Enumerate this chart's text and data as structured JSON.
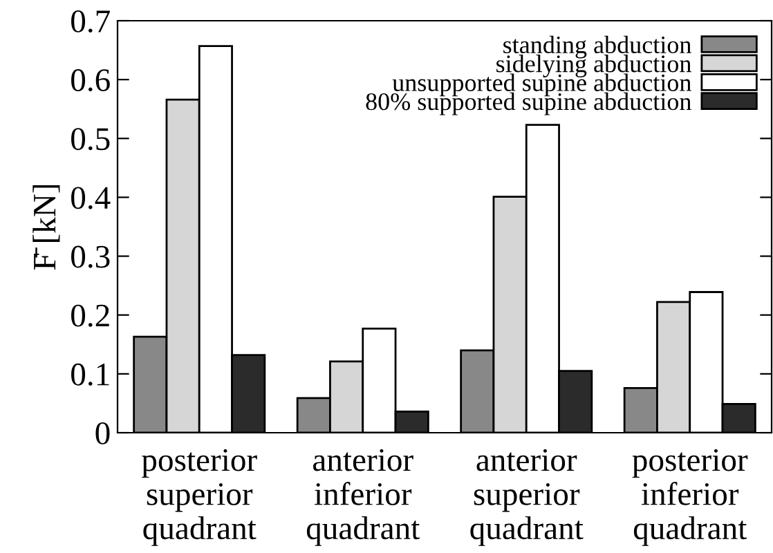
{
  "chart_data": {
    "type": "bar",
    "ylabel": "F̄ [kN]",
    "categories": [
      "posterior\nsuperior\nquadrant",
      "anterior\ninferior\nquadrant",
      "anterior\nsuperior\nquadrant",
      "posterior\ninferior\nquadrant"
    ],
    "series": [
      {
        "name": "standing abduction",
        "color": "#888888",
        "values": [
          0.163,
          0.059,
          0.14,
          0.076
        ]
      },
      {
        "name": "sidelying abduction",
        "color": "#d6d6d6",
        "values": [
          0.566,
          0.121,
          0.401,
          0.222
        ]
      },
      {
        "name": "unsupported supine abduction",
        "color": "#ffffff",
        "values": [
          0.657,
          0.177,
          0.523,
          0.239
        ]
      },
      {
        "name": "80% supported supine abduction",
        "color": "#2b2b2b",
        "values": [
          0.132,
          0.036,
          0.105,
          0.049
        ]
      }
    ],
    "ylim": [
      0,
      0.7
    ],
    "yticks": [
      0,
      0.1,
      0.2,
      0.3,
      0.4,
      0.5,
      0.6,
      0.7
    ],
    "grid": false,
    "legend": "top right"
  }
}
